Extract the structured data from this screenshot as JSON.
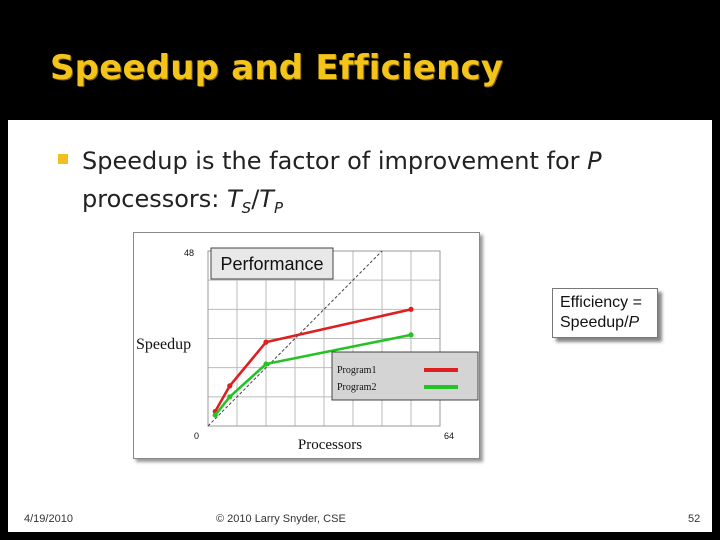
{
  "slide": {
    "title": "Speedup and Efficiency",
    "bullet_text_part1": "Speedup is the factor of improvement for ",
    "bullet_P": "P",
    "bullet_text_part2": "processors: ",
    "bullet_formula_TS": "T",
    "bullet_formula_S": "S",
    "bullet_formula_slash": "/",
    "bullet_formula_TP": "T",
    "bullet_formula_P": "P"
  },
  "efficiency_box": {
    "line1": "Efficiency =",
    "line2": "Speedup/",
    "line2_P": "P"
  },
  "footer": {
    "date": "4/19/2010",
    "copyright": "© 2010 Larry Snyder, CSE",
    "page": "52"
  },
  "chart_data": {
    "type": "line",
    "title": "Performance",
    "xlabel": "Processors",
    "ylabel": "Speedup",
    "xlim": [
      0,
      64
    ],
    "ylim": [
      0,
      48
    ],
    "x_tick_labels": [
      "0",
      "64"
    ],
    "y_tick_labels": [
      "48"
    ],
    "grid": true,
    "ideal_line": true,
    "legend_placement": "lower-right",
    "series": [
      {
        "name": "Program1",
        "color": "#dd1f1f",
        "x": [
          2,
          6,
          16,
          56
        ],
        "y": [
          4,
          11,
          23,
          32
        ]
      },
      {
        "name": "Program2",
        "color": "#22c322",
        "x": [
          2,
          6,
          16,
          56
        ],
        "y": [
          3,
          8,
          17,
          25
        ]
      }
    ]
  }
}
